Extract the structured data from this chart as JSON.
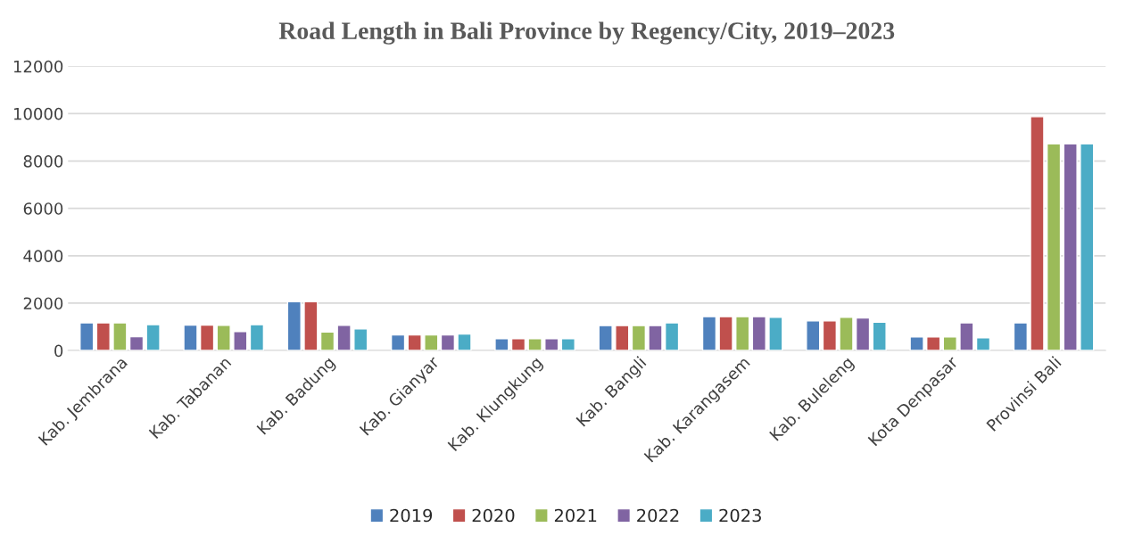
{
  "chart_data": {
    "type": "bar",
    "title": "Road Length in Bali Province by Regency/City, 2019–2023",
    "categories": [
      "Kab. Jembrana",
      "Kab. Tabanan",
      "Kab. Badung",
      "Kab. Gianyar",
      "Kab. Klungkung",
      "Kab. Bangli",
      "Kab. Karangasem",
      "Kab. Buleleng",
      "Kota Denpasar",
      "Provinsi Bali"
    ],
    "series": [
      {
        "name": "2019",
        "color": "#4f81bd",
        "values": [
          1170,
          1070,
          2060,
          660,
          500,
          1050,
          1430,
          1250,
          570,
          1170
        ]
      },
      {
        "name": "2020",
        "color": "#c0504d",
        "values": [
          1170,
          1070,
          2060,
          660,
          500,
          1050,
          1430,
          1250,
          570,
          9870
        ]
      },
      {
        "name": "2021",
        "color": "#9bbb59",
        "values": [
          1170,
          1060,
          780,
          660,
          500,
          1050,
          1430,
          1400,
          570,
          8720
        ]
      },
      {
        "name": "2022",
        "color": "#8064a2",
        "values": [
          580,
          800,
          1060,
          660,
          500,
          1050,
          1430,
          1370,
          1170,
          8720
        ]
      },
      {
        "name": "2023",
        "color": "#4bacc6",
        "values": [
          1090,
          1090,
          910,
          700,
          500,
          1170,
          1400,
          1200,
          540,
          8720
        ]
      }
    ],
    "ylim": [
      0,
      12000
    ],
    "yticks": [
      0,
      2000,
      4000,
      6000,
      8000,
      10000,
      12000
    ],
    "grid": "y",
    "legend": "bottom"
  }
}
